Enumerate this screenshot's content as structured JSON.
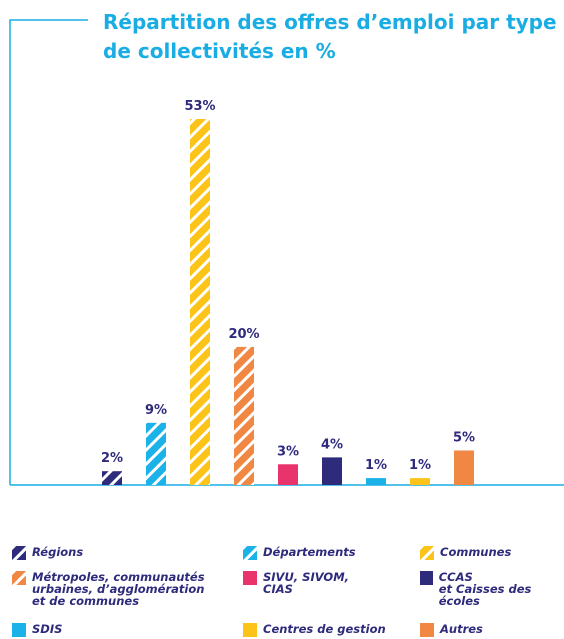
{
  "chart_data": {
    "type": "bar",
    "title": "Répartition des offres d’emploi par type\nde collectivités en %",
    "categories": [
      "Régions",
      "Départements",
      "Communes",
      "Métropoles, communautés\nurbaines, d’agglomération\net de communes",
      "SIVU, SIVOM,\nCIAS",
      "CCAS\net Caisses des écoles",
      "SDIS",
      "Centres de gestion",
      "Autres"
    ],
    "values": [
      2,
      9,
      53,
      20,
      3,
      4,
      1,
      1,
      5
    ],
    "value_labels": [
      "2%",
      "9%",
      "53%",
      "20%",
      "3%",
      "4%",
      "1%",
      "1%",
      "5%"
    ],
    "colors": [
      "#2e2a7c",
      "#1ab2e8",
      "#fcc419",
      "#f08743",
      "#e8336d",
      "#2e2a7c",
      "#1ab2e8",
      "#fcc419",
      "#f08743"
    ],
    "patterns": [
      "hatched",
      "hatched",
      "hatched",
      "hatched",
      "solid",
      "solid",
      "solid",
      "solid",
      "solid"
    ],
    "legend": true
  }
}
